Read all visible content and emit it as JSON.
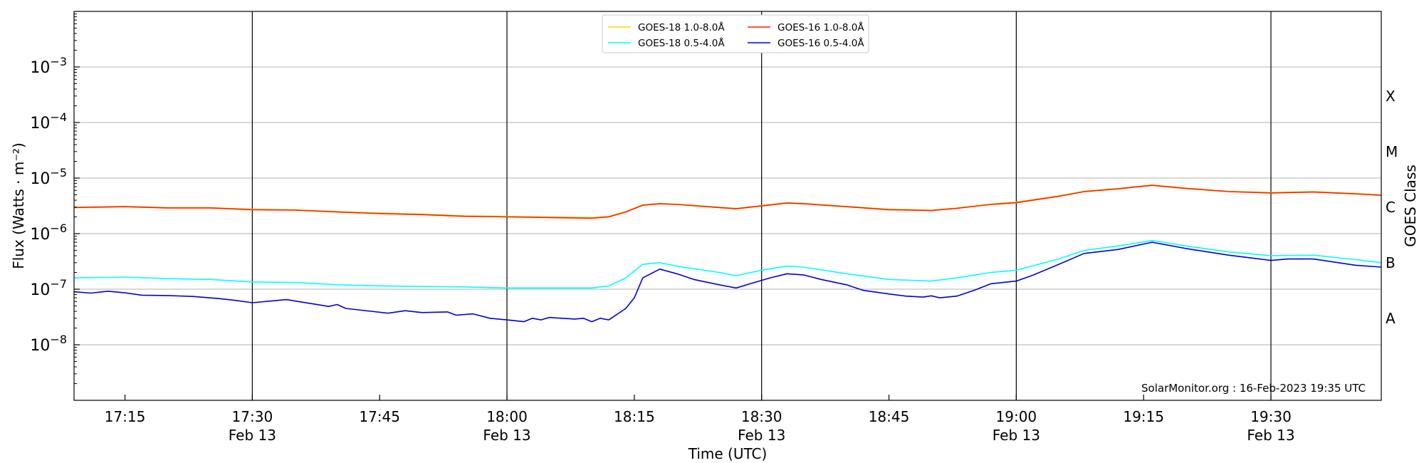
{
  "chart_data": {
    "type": "line",
    "xlabel": "Time (UTC)",
    "ylabel": "Flux (Watts · m⁻²)",
    "right_axis_label": "GOES Class",
    "x_range": [
      "17:09",
      "19:43"
    ],
    "ylim": [
      1e-09,
      0.01
    ],
    "y_scale": "log",
    "y_ticks": [
      {
        "value": 1e-08,
        "base": "10",
        "exp": "−8"
      },
      {
        "value": 1e-07,
        "base": "10",
        "exp": "−7"
      },
      {
        "value": 1e-06,
        "base": "10",
        "exp": "−6"
      },
      {
        "value": 1e-05,
        "base": "10",
        "exp": "−5"
      },
      {
        "value": 0.0001,
        "base": "10",
        "exp": "−4"
      },
      {
        "value": 0.001,
        "base": "10",
        "exp": "−3"
      }
    ],
    "x_ticks": [
      {
        "time": "17:15",
        "label": "17:15",
        "sub": ""
      },
      {
        "time": "17:30",
        "label": "17:30",
        "sub": "Feb 13"
      },
      {
        "time": "17:45",
        "label": "17:45",
        "sub": ""
      },
      {
        "time": "18:00",
        "label": "18:00",
        "sub": "Feb 13"
      },
      {
        "time": "18:15",
        "label": "18:15",
        "sub": ""
      },
      {
        "time": "18:30",
        "label": "18:30",
        "sub": "Feb 13"
      },
      {
        "time": "18:45",
        "label": "18:45",
        "sub": ""
      },
      {
        "time": "19:00",
        "label": "19:00",
        "sub": "Feb 13"
      },
      {
        "time": "19:15",
        "label": "19:15",
        "sub": ""
      },
      {
        "time": "19:30",
        "label": "19:30",
        "sub": "Feb 13"
      }
    ],
    "vertical_lines": [
      "17:30",
      "18:00",
      "18:30",
      "19:00",
      "19:30"
    ],
    "class_labels": [
      {
        "label": "A",
        "value": 3e-08
      },
      {
        "label": "B",
        "value": 3e-07
      },
      {
        "label": "C",
        "value": 3e-06
      },
      {
        "label": "M",
        "value": 3e-05
      },
      {
        "label": "X",
        "value": 0.0003
      }
    ],
    "grid": "horizontal at decades",
    "legend_position": "top-center",
    "annotation": "SolarMonitor.org : 16-Feb-2023 19:35 UTC",
    "series": [
      {
        "name": "GOES-18 1.0-8.0Å",
        "color": "#ffd700",
        "points": [
          [
            "17:09",
            3e-06
          ],
          [
            "17:15",
            3.1e-06
          ],
          [
            "17:20",
            2.95e-06
          ],
          [
            "17:25",
            2.95e-06
          ],
          [
            "17:30",
            2.75e-06
          ],
          [
            "17:35",
            2.7e-06
          ],
          [
            "17:40",
            2.5e-06
          ],
          [
            "17:45",
            2.35e-06
          ],
          [
            "17:50",
            2.25e-06
          ],
          [
            "17:55",
            2.1e-06
          ],
          [
            "18:00",
            2.05e-06
          ],
          [
            "18:05",
            2e-06
          ],
          [
            "18:10",
            1.95e-06
          ],
          [
            "18:12",
            2.05e-06
          ],
          [
            "18:14",
            2.5e-06
          ],
          [
            "18:16",
            3.3e-06
          ],
          [
            "18:18",
            3.5e-06
          ],
          [
            "18:20",
            3.4e-06
          ],
          [
            "18:25",
            3e-06
          ],
          [
            "18:27",
            2.85e-06
          ],
          [
            "18:30",
            3.2e-06
          ],
          [
            "18:33",
            3.6e-06
          ],
          [
            "18:35",
            3.5e-06
          ],
          [
            "18:40",
            3.1e-06
          ],
          [
            "18:45",
            2.75e-06
          ],
          [
            "18:50",
            2.65e-06
          ],
          [
            "18:53",
            2.9e-06
          ],
          [
            "18:57",
            3.4e-06
          ],
          [
            "19:00",
            3.7e-06
          ],
          [
            "19:05",
            4.8e-06
          ],
          [
            "19:08",
            5.8e-06
          ],
          [
            "19:12",
            6.5e-06
          ],
          [
            "19:16",
            7.5e-06
          ],
          [
            "19:20",
            6.6e-06
          ],
          [
            "19:25",
            5.8e-06
          ],
          [
            "19:30",
            5.5e-06
          ],
          [
            "19:35",
            5.7e-06
          ],
          [
            "19:40",
            5.3e-06
          ],
          [
            "19:43",
            5e-06
          ]
        ]
      },
      {
        "name": "GOES-18 0.5-4.0Å",
        "color": "#00ffff",
        "points": [
          [
            "17:09",
            1.6e-07
          ],
          [
            "17:15",
            1.65e-07
          ],
          [
            "17:20",
            1.55e-07
          ],
          [
            "17:25",
            1.5e-07
          ],
          [
            "17:30",
            1.35e-07
          ],
          [
            "17:35",
            1.32e-07
          ],
          [
            "17:40",
            1.2e-07
          ],
          [
            "17:45",
            1.15e-07
          ],
          [
            "17:50",
            1.12e-07
          ],
          [
            "17:55",
            1.1e-07
          ],
          [
            "18:00",
            1.05e-07
          ],
          [
            "18:05",
            1.05e-07
          ],
          [
            "18:10",
            1.05e-07
          ],
          [
            "18:12",
            1.15e-07
          ],
          [
            "18:14",
            1.6e-07
          ],
          [
            "18:16",
            2.8e-07
          ],
          [
            "18:18",
            3e-07
          ],
          [
            "18:20",
            2.6e-07
          ],
          [
            "18:25",
            2e-07
          ],
          [
            "18:27",
            1.75e-07
          ],
          [
            "18:30",
            2.2e-07
          ],
          [
            "18:33",
            2.6e-07
          ],
          [
            "18:35",
            2.5e-07
          ],
          [
            "18:40",
            1.9e-07
          ],
          [
            "18:45",
            1.5e-07
          ],
          [
            "18:50",
            1.4e-07
          ],
          [
            "18:53",
            1.6e-07
          ],
          [
            "18:57",
            2e-07
          ],
          [
            "19:00",
            2.2e-07
          ],
          [
            "19:05",
            3.5e-07
          ],
          [
            "19:08",
            5e-07
          ],
          [
            "19:12",
            6e-07
          ],
          [
            "19:16",
            7.5e-07
          ],
          [
            "19:20",
            6e-07
          ],
          [
            "19:25",
            4.7e-07
          ],
          [
            "19:30",
            4e-07
          ],
          [
            "19:35",
            4.1e-07
          ],
          [
            "19:40",
            3.4e-07
          ],
          [
            "19:43",
            3e-07
          ]
        ]
      },
      {
        "name": "GOES-16 1.0-8.0Å",
        "color": "#ff2000",
        "points": [
          [
            "17:09",
            2.95e-06
          ],
          [
            "17:15",
            3.05e-06
          ],
          [
            "17:20",
            2.9e-06
          ],
          [
            "17:25",
            2.9e-06
          ],
          [
            "17:30",
            2.7e-06
          ],
          [
            "17:35",
            2.65e-06
          ],
          [
            "17:40",
            2.45e-06
          ],
          [
            "17:45",
            2.3e-06
          ],
          [
            "17:50",
            2.2e-06
          ],
          [
            "17:55",
            2.05e-06
          ],
          [
            "18:00",
            2e-06
          ],
          [
            "18:05",
            1.95e-06
          ],
          [
            "18:10",
            1.9e-06
          ],
          [
            "18:12",
            2e-06
          ],
          [
            "18:14",
            2.45e-06
          ],
          [
            "18:16",
            3.25e-06
          ],
          [
            "18:18",
            3.45e-06
          ],
          [
            "18:20",
            3.35e-06
          ],
          [
            "18:25",
            2.95e-06
          ],
          [
            "18:27",
            2.8e-06
          ],
          [
            "18:30",
            3.15e-06
          ],
          [
            "18:33",
            3.55e-06
          ],
          [
            "18:35",
            3.45e-06
          ],
          [
            "18:40",
            3.05e-06
          ],
          [
            "18:45",
            2.7e-06
          ],
          [
            "18:50",
            2.6e-06
          ],
          [
            "18:53",
            2.85e-06
          ],
          [
            "18:57",
            3.35e-06
          ],
          [
            "19:00",
            3.6e-06
          ],
          [
            "19:05",
            4.7e-06
          ],
          [
            "19:08",
            5.7e-06
          ],
          [
            "19:12",
            6.4e-06
          ],
          [
            "19:16",
            7.4e-06
          ],
          [
            "19:20",
            6.5e-06
          ],
          [
            "19:25",
            5.7e-06
          ],
          [
            "19:30",
            5.4e-06
          ],
          [
            "19:35",
            5.6e-06
          ],
          [
            "19:40",
            5.2e-06
          ],
          [
            "19:43",
            4.9e-06
          ]
        ]
      },
      {
        "name": "GOES-16 0.5-4.0Å",
        "color": "#0000dd",
        "points": [
          [
            "17:09",
            9e-08
          ],
          [
            "17:11",
            8.5e-08
          ],
          [
            "17:13",
            9.2e-08
          ],
          [
            "17:15",
            8.6e-08
          ],
          [
            "17:17",
            7.8e-08
          ],
          [
            "17:20",
            7.7e-08
          ],
          [
            "17:23",
            7.4e-08
          ],
          [
            "17:26",
            6.8e-08
          ],
          [
            "17:28",
            6.3e-08
          ],
          [
            "17:30",
            5.7e-08
          ],
          [
            "17:34",
            6.5e-08
          ],
          [
            "17:37",
            5.5e-08
          ],
          [
            "17:39",
            4.9e-08
          ],
          [
            "17:40",
            5.3e-08
          ],
          [
            "17:41",
            4.5e-08
          ],
          [
            "17:44",
            4e-08
          ],
          [
            "17:46",
            3.7e-08
          ],
          [
            "17:48",
            4.1e-08
          ],
          [
            "17:50",
            3.8e-08
          ],
          [
            "17:53",
            3.9e-08
          ],
          [
            "17:54",
            3.4e-08
          ],
          [
            "17:56",
            3.6e-08
          ],
          [
            "17:58",
            3e-08
          ],
          [
            "18:00",
            2.8e-08
          ],
          [
            "18:02",
            2.6e-08
          ],
          [
            "18:03",
            3e-08
          ],
          [
            "18:04",
            2.8e-08
          ],
          [
            "18:05",
            3.1e-08
          ],
          [
            "18:08",
            2.9e-08
          ],
          [
            "18:09",
            3e-08
          ],
          [
            "18:10",
            2.6e-08
          ],
          [
            "18:11",
            3e-08
          ],
          [
            "18:12",
            2.8e-08
          ],
          [
            "18:14",
            4.5e-08
          ],
          [
            "18:15",
            7e-08
          ],
          [
            "18:16",
            1.6e-07
          ],
          [
            "18:18",
            2.3e-07
          ],
          [
            "18:20",
            1.9e-07
          ],
          [
            "18:22",
            1.5e-07
          ],
          [
            "18:25",
            1.2e-07
          ],
          [
            "18:27",
            1.05e-07
          ],
          [
            "18:29",
            1.3e-07
          ],
          [
            "18:31",
            1.6e-07
          ],
          [
            "18:33",
            1.9e-07
          ],
          [
            "18:35",
            1.8e-07
          ],
          [
            "18:37",
            1.5e-07
          ],
          [
            "18:40",
            1.2e-07
          ],
          [
            "18:42",
            9.5e-08
          ],
          [
            "18:45",
            8.2e-08
          ],
          [
            "18:47",
            7.5e-08
          ],
          [
            "18:49",
            7.2e-08
          ],
          [
            "18:50",
            7.6e-08
          ],
          [
            "18:51",
            7e-08
          ],
          [
            "18:53",
            7.5e-08
          ],
          [
            "18:55",
            9.5e-08
          ],
          [
            "18:57",
            1.25e-07
          ],
          [
            "19:00",
            1.4e-07
          ],
          [
            "19:02",
            1.8e-07
          ],
          [
            "19:05",
            2.8e-07
          ],
          [
            "19:08",
            4.4e-07
          ],
          [
            "19:12",
            5.2e-07
          ],
          [
            "19:16",
            7e-07
          ],
          [
            "19:20",
            5.4e-07
          ],
          [
            "19:25",
            4.1e-07
          ],
          [
            "19:30",
            3.3e-07
          ],
          [
            "19:32",
            3.5e-07
          ],
          [
            "19:35",
            3.5e-07
          ],
          [
            "19:40",
            2.7e-07
          ],
          [
            "19:43",
            2.5e-07
          ]
        ]
      }
    ]
  }
}
